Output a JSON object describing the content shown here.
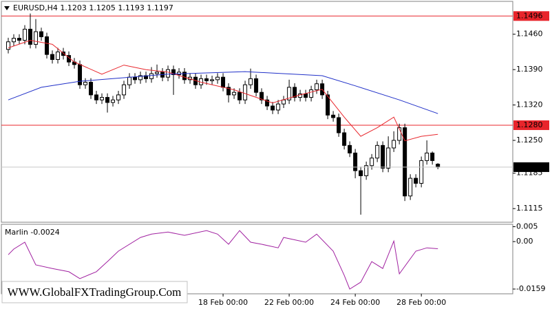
{
  "chart_data": [
    {
      "type": "candlestick",
      "title": "EURUSD,H4  1.1203 1.1205 1.1193 1.1197",
      "open": [
        1.143,
        1.1445,
        1.1452,
        1.1448,
        1.147,
        1.144,
        1.1465,
        1.1455,
        1.142,
        1.141,
        1.1425,
        1.1418,
        1.1405,
        1.14,
        1.136,
        1.1365,
        1.134,
        1.133,
        1.1335,
        1.1325,
        1.133,
        1.134,
        1.136,
        1.1375,
        1.137,
        1.1378,
        1.1372,
        1.1382,
        1.1385,
        1.1375,
        1.139,
        1.138,
        1.1385,
        1.137,
        1.1375,
        1.136,
        1.1372,
        1.1368,
        1.137,
        1.1375,
        1.1355,
        1.134,
        1.1345,
        1.133,
        1.136,
        1.1372,
        1.1345,
        1.133,
        1.1318,
        1.131,
        1.1322,
        1.133,
        1.1355,
        1.1335,
        1.1342,
        1.1335,
        1.135,
        1.1362,
        1.134,
        1.13,
        1.1295,
        1.1265,
        1.124,
        1.1225,
        1.119,
        1.118,
        1.12,
        1.1215,
        1.124,
        1.1195,
        1.1235,
        1.125,
        1.1275,
        1.114,
        1.1175,
        1.1165,
        1.121,
        1.1225,
        1.1203
      ],
      "high": [
        1.1453,
        1.146,
        1.146,
        1.1478,
        1.1501,
        1.149,
        1.1473,
        1.1463,
        1.1428,
        1.1433,
        1.1433,
        1.1426,
        1.1413,
        1.1408,
        1.1373,
        1.1373,
        1.1348,
        1.1343,
        1.1343,
        1.1338,
        1.1348,
        1.1368,
        1.1383,
        1.1383,
        1.1386,
        1.1386,
        1.1395,
        1.14,
        1.1393,
        1.1398,
        1.1398,
        1.1393,
        1.1393,
        1.1383,
        1.1383,
        1.138,
        1.138,
        1.1378,
        1.1383,
        1.1383,
        1.1363,
        1.1353,
        1.1353,
        1.1368,
        1.1392,
        1.138,
        1.1353,
        1.1338,
        1.1326,
        1.133,
        1.1338,
        1.137,
        1.1363,
        1.135,
        1.135,
        1.1358,
        1.137,
        1.137,
        1.1348,
        1.1308,
        1.1303,
        1.1273,
        1.1248,
        1.1233,
        1.1198,
        1.1208,
        1.1223,
        1.1248,
        1.1248,
        1.1258,
        1.1268,
        1.1283,
        1.1283,
        1.1183,
        1.1183,
        1.1218,
        1.125,
        1.1228,
        1.1205
      ],
      "low": [
        1.1422,
        1.1437,
        1.144,
        1.144,
        1.1432,
        1.1432,
        1.1447,
        1.1412,
        1.1402,
        1.1402,
        1.141,
        1.1397,
        1.1392,
        1.1352,
        1.1352,
        1.1332,
        1.1322,
        1.1322,
        1.1305,
        1.1317,
        1.1322,
        1.1332,
        1.1352,
        1.1362,
        1.1362,
        1.1364,
        1.1364,
        1.1374,
        1.1367,
        1.1367,
        1.134,
        1.1372,
        1.1362,
        1.1362,
        1.1352,
        1.1352,
        1.136,
        1.136,
        1.1362,
        1.1347,
        1.1325,
        1.1332,
        1.1322,
        1.1322,
        1.1352,
        1.1337,
        1.1322,
        1.131,
        1.1302,
        1.1302,
        1.1314,
        1.1322,
        1.1327,
        1.1327,
        1.1327,
        1.1327,
        1.1342,
        1.1332,
        1.1292,
        1.1287,
        1.1257,
        1.1232,
        1.1217,
        1.1175,
        1.1103,
        1.1172,
        1.1192,
        1.1207,
        1.1187,
        1.1187,
        1.1227,
        1.1242,
        1.113,
        1.1132,
        1.1157,
        1.1157,
        1.1202,
        1.1202,
        1.1193
      ],
      "close": [
        1.1445,
        1.1452,
        1.1448,
        1.147,
        1.144,
        1.1465,
        1.1455,
        1.142,
        1.141,
        1.1425,
        1.1418,
        1.1405,
        1.14,
        1.136,
        1.1365,
        1.134,
        1.133,
        1.1335,
        1.1325,
        1.133,
        1.134,
        1.136,
        1.1375,
        1.137,
        1.1378,
        1.1372,
        1.1382,
        1.1385,
        1.1375,
        1.139,
        1.138,
        1.1385,
        1.137,
        1.1375,
        1.136,
        1.1372,
        1.1368,
        1.137,
        1.1375,
        1.1355,
        1.134,
        1.1345,
        1.133,
        1.136,
        1.1372,
        1.1345,
        1.133,
        1.1318,
        1.131,
        1.1322,
        1.133,
        1.1355,
        1.1335,
        1.1342,
        1.1335,
        1.135,
        1.1362,
        1.134,
        1.13,
        1.1295,
        1.1265,
        1.124,
        1.1225,
        1.119,
        1.118,
        1.12,
        1.1215,
        1.124,
        1.1195,
        1.1235,
        1.125,
        1.1275,
        1.114,
        1.1175,
        1.1165,
        1.121,
        1.1225,
        1.121,
        1.1197
      ],
      "up_color": "#ffffff",
      "down_color": "#000000",
      "lines": [
        {
          "color": "#e8252b",
          "x": [
            0,
            4,
            8,
            12,
            17,
            21,
            25,
            29,
            35,
            41,
            48,
            53,
            57,
            61,
            64,
            67,
            70,
            72,
            75,
            78
          ],
          "values": [
            1.1433,
            1.1448,
            1.144,
            1.1405,
            1.1381,
            1.1399,
            1.139,
            1.1385,
            1.1365,
            1.135,
            1.1324,
            1.134,
            1.1351,
            1.1296,
            1.1258,
            1.1275,
            1.1296,
            1.1249,
            1.1258,
            1.1262
          ]
        },
        {
          "color": "#1f2fc8",
          "x": [
            0,
            6,
            13,
            29,
            43,
            57,
            63,
            71,
            78
          ],
          "values": [
            1.133,
            1.1355,
            1.1367,
            1.1381,
            1.1386,
            1.1378,
            1.1358,
            1.133,
            1.1303
          ]
        }
      ],
      "levels": [
        {
          "value": 1.1496,
          "label": "1.1496",
          "color": "#e8252b"
        },
        {
          "value": 1.128,
          "label": "1.1280",
          "color": "#e8252b"
        }
      ],
      "xlim": [
        -1.25,
        91.6
      ],
      "ylim": [
        1.1088,
        1.1525
      ],
      "yticks": [
        {
          "value": 1.146,
          "label": "1.1460"
        },
        {
          "value": 1.139,
          "label": "1.1390"
        },
        {
          "value": 1.132,
          "label": "1.1320"
        },
        {
          "value": 1.125,
          "label": "1.1250"
        },
        {
          "value": 1.1185,
          "label": "1.1185"
        },
        {
          "value": 1.1115,
          "label": "1.1115"
        }
      ]
    },
    {
      "type": "line",
      "title": "Marlin -0.0024",
      "watermark": "WWW.GlobalFXTradingGroup.Com",
      "series": [
        {
          "color": "#a020a0",
          "x": [
            0,
            1,
            3,
            5,
            8,
            11,
            13,
            16,
            18,
            20,
            24,
            26,
            29,
            32,
            36,
            38,
            40,
            42,
            44,
            46,
            49,
            50,
            54,
            56,
            59,
            61,
            62,
            64,
            66,
            68,
            70,
            71,
            74,
            76,
            78
          ],
          "values": [
            -0.0044,
            -0.0025,
            -0.0002,
            -0.0078,
            -0.009,
            -0.0101,
            -0.0124,
            -0.0101,
            -0.0067,
            -0.0032,
            0.0014,
            0.0025,
            0.0032,
            0.0021,
            0.0037,
            0.0025,
            -0.0009,
            0.0037,
            -0.0002,
            -0.0009,
            -0.0021,
            0.0014,
            -0.0002,
            0.0025,
            -0.0032,
            -0.0113,
            -0.0159,
            -0.0136,
            -0.0067,
            -0.009,
            0.0002,
            -0.0108,
            -0.0032,
            -0.0021,
            -0.0024
          ]
        }
      ],
      "xlim": [
        -1.25,
        91.6
      ],
      "ylim": [
        -0.0175,
        0.0058
      ],
      "yticks": [
        0.005,
        {
          "value": 0,
          "label": "0.00"
        },
        -0.0159
      ],
      "xticks": [
        {
          "value": 39,
          "label": "18 Feb 00:00"
        },
        {
          "value": 51,
          "label": "22 Feb 00:00"
        },
        {
          "value": 63,
          "label": "24 Feb 00:00"
        },
        {
          "value": 75,
          "label": "28 Feb 00:00"
        }
      ]
    }
  ]
}
